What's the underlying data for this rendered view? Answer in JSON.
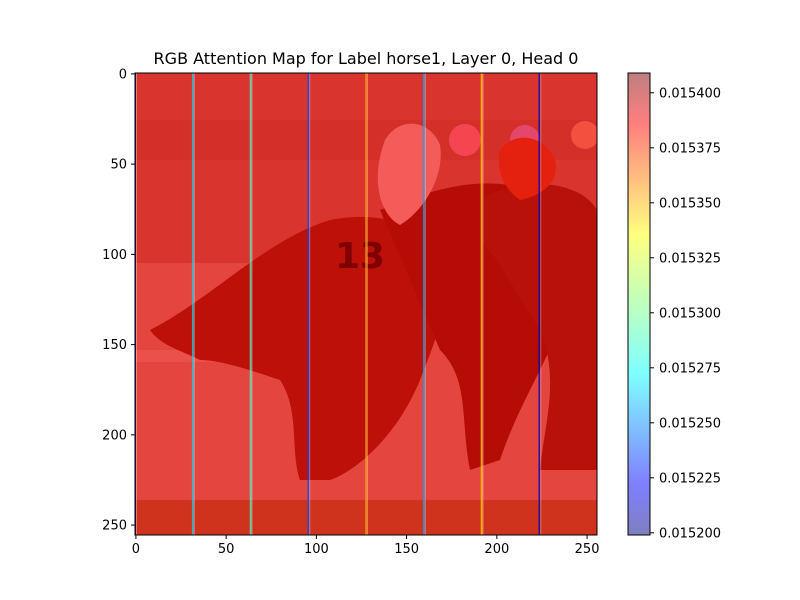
{
  "chart_data": {
    "type": "heatmap",
    "title": "RGB Attention Map for Label horse1, Layer 0, Head 0",
    "x_ticks": [
      "0",
      "50",
      "100",
      "150",
      "200",
      "250"
    ],
    "y_ticks": [
      "0",
      "50",
      "100",
      "150",
      "200",
      "250"
    ],
    "xlim": [
      0,
      255
    ],
    "ylim": [
      255,
      0
    ],
    "y_axis_inverted": true,
    "colormap": "jet",
    "overlay_alpha": 0.5,
    "background": "photo of a horse race, jockey on horse number 13",
    "jockey_number": "13",
    "colorbar": {
      "min": 0.015199,
      "max": 0.015409,
      "ticks": [
        "0.015200",
        "0.015225",
        "0.015250",
        "0.015275",
        "0.015300",
        "0.015325",
        "0.015350",
        "0.015375",
        "0.015400"
      ],
      "tick_values": [
        0.0152,
        0.015225,
        0.01525,
        0.015275,
        0.0153,
        0.015325,
        0.01535,
        0.015375,
        0.0154
      ]
    },
    "attention": {
      "base_value": 0.015404,
      "stripe_columns": [
        0,
        32,
        64,
        96,
        128,
        160,
        192,
        224
      ],
      "stripe_values": [
        0.0152,
        0.01527,
        0.01529,
        0.01524,
        0.01535,
        0.01526,
        0.01534,
        0.01521
      ]
    },
    "grid": false
  }
}
